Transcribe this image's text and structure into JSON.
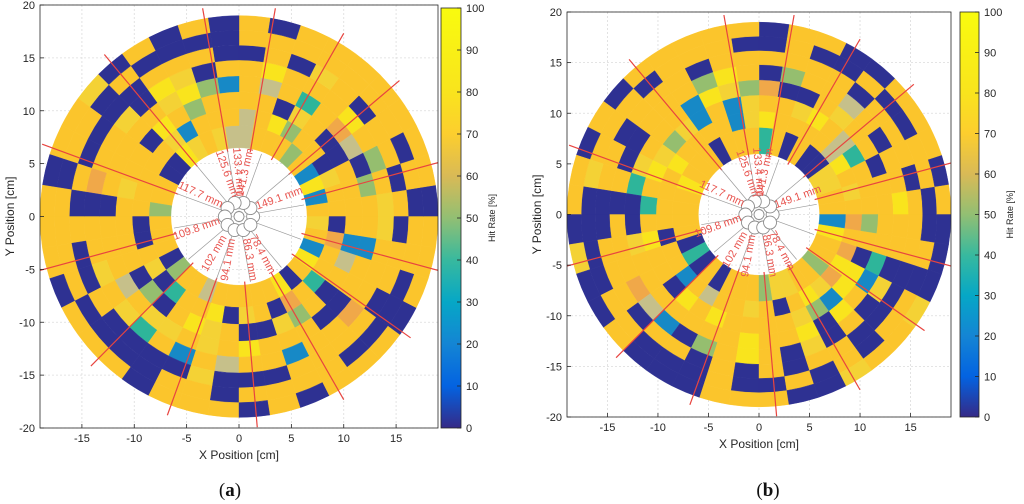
{
  "chart_data": [
    {
      "type": "heatmap",
      "panel": "a",
      "caption_letter": "a",
      "xlabel": "X Position [cm]",
      "ylabel": "Y Position [cm]",
      "xlim": [
        -19,
        19
      ],
      "ylim": [
        -20,
        20
      ],
      "xticks": [
        -15,
        -10,
        -5,
        0,
        5,
        10,
        15
      ],
      "yticks": [
        -20,
        -15,
        -10,
        -5,
        0,
        5,
        10,
        15,
        20
      ],
      "colorbar": {
        "label": "Hit Rate [%]",
        "range": [
          0,
          100
        ],
        "ticks": [
          0,
          10,
          20,
          30,
          40,
          50,
          60,
          70,
          80,
          90,
          100
        ]
      },
      "detector_radius_cm": 19,
      "inner_hole_radius_cm": 6.5,
      "seed": 7,
      "distance_labels": [
        "117.7 mm",
        "125.6 mm",
        "133.4 mm",
        "141.3 mm",
        "149.1 mm",
        "78.4 mm",
        "86.3 mm",
        "94.1 mm",
        "102 mm",
        "109.8 mm"
      ]
    },
    {
      "type": "heatmap",
      "panel": "b",
      "caption_letter": "b",
      "xlabel": "X Position [cm]",
      "ylabel": "Y Position [cm]",
      "xlim": [
        -19,
        19
      ],
      "ylim": [
        -20,
        20
      ],
      "xticks": [
        -15,
        -10,
        -5,
        0,
        5,
        10,
        15
      ],
      "yticks": [
        -20,
        -15,
        -10,
        -5,
        0,
        5,
        10,
        15,
        20
      ],
      "colorbar": {
        "label": "Hit Rate [%]",
        "range": [
          0,
          100
        ],
        "ticks": [
          0,
          10,
          20,
          30,
          40,
          50,
          60,
          70,
          80,
          90,
          100
        ]
      },
      "detector_radius_cm": 19,
      "inner_hole_radius_cm": 6,
      "seed": 23,
      "distance_labels": [
        "117.7 mm",
        "125.6 mm",
        "133.4 mm",
        "141.3 mm",
        "149.1 mm",
        "78.4 mm",
        "86.3 mm",
        "94.1 mm",
        "102 mm",
        "109.8 mm"
      ]
    }
  ]
}
